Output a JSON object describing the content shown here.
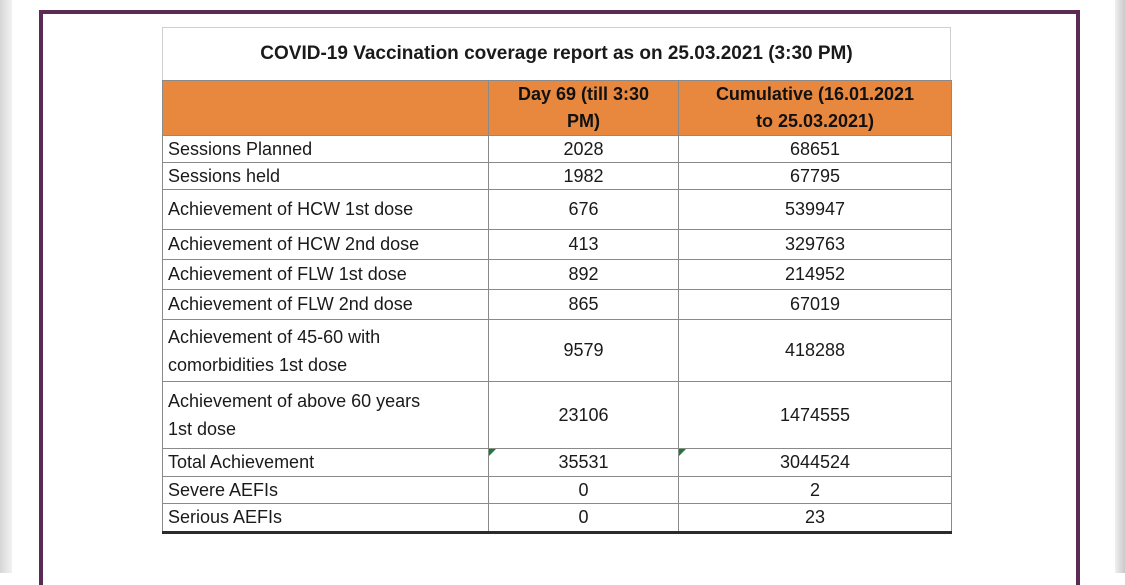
{
  "report": {
    "title": "COVID-19 Vaccination coverage report as on 25.03.2021 (3:30 PM)",
    "columns": {
      "label": "",
      "day_line1": "Day 69 (till 3:30",
      "day_line2": "PM)",
      "cum_line1": "Cumulative (16.01.2021",
      "cum_line2": "to 25.03.2021)"
    },
    "rows": [
      {
        "label": "Sessions Planned",
        "day": "2028",
        "cumulative": "68651"
      },
      {
        "label": "Sessions held",
        "day": "1982",
        "cumulative": "67795"
      },
      {
        "label": "Achievement of HCW 1st dose",
        "day": "676",
        "cumulative": "539947"
      },
      {
        "label": "Achievement of HCW 2nd dose",
        "day": "413",
        "cumulative": "329763"
      },
      {
        "label": "Achievement of FLW 1st dose",
        "day": "892",
        "cumulative": "214952"
      },
      {
        "label": "Achievement of FLW 2nd dose",
        "day": "865",
        "cumulative": "67019"
      },
      {
        "label_line1": "Achievement of 45-60 with",
        "label_line2": "comorbidities 1st dose",
        "day": "9579",
        "cumulative": "418288"
      },
      {
        "label_line1": "Achievement of above 60 years",
        "label_line2": "1st dose",
        "day": "23106",
        "cumulative": "1474555"
      },
      {
        "label": "Total Achievement",
        "day": "35531",
        "cumulative": "3044524"
      },
      {
        "label": "Severe AEFIs",
        "day": "0",
        "cumulative": "2"
      },
      {
        "label": "Serious AEFIs",
        "day": "0",
        "cumulative": "23"
      }
    ]
  },
  "colors": {
    "frame": "#5b2a55",
    "header_fill": "#e8883f",
    "cell_marker": "#1f7a35"
  }
}
